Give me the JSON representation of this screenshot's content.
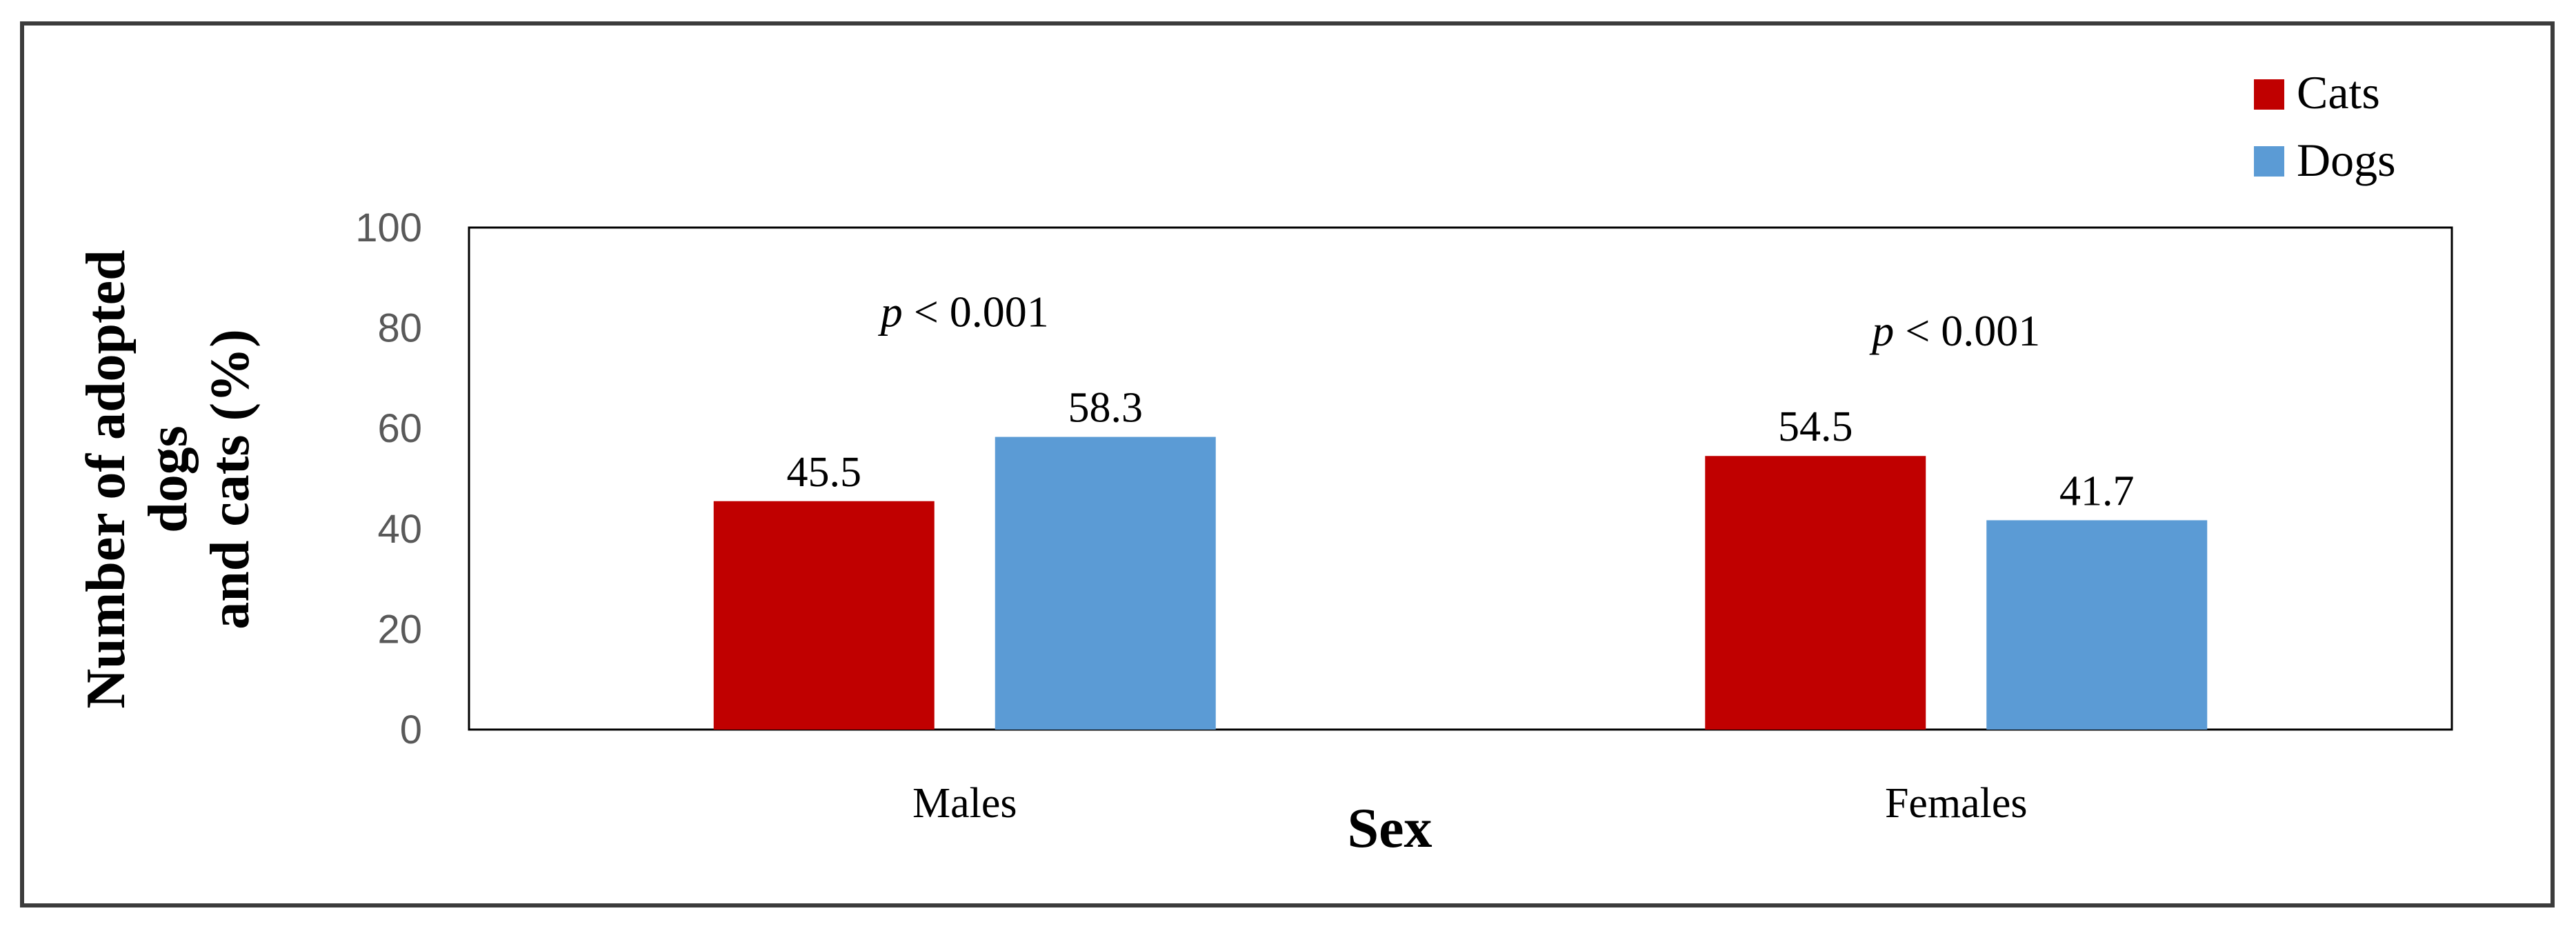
{
  "chart_data": {
    "type": "bar",
    "categories": [
      "Males",
      "Females"
    ],
    "series": [
      {
        "name": "Cats",
        "values": [
          45.5,
          54.5
        ],
        "color": "#c00000"
      },
      {
        "name": "Dogs",
        "values": [
          58.3,
          41.7
        ],
        "color": "#5b9bd5"
      }
    ],
    "xlabel": "Sex",
    "ylabel_lines": [
      "Number of adopted",
      "dogs",
      "and cats (%)"
    ],
    "ylim": [
      0,
      100
    ],
    "yticks": [
      "0",
      "20",
      "40",
      "60",
      "80",
      "100"
    ],
    "annotations": [
      {
        "category": "Males",
        "p_symbol": "p",
        "text": "< 0.001"
      },
      {
        "category": "Females",
        "p_symbol": "p",
        "text": "< 0.001"
      }
    ],
    "legend_position": "top-right",
    "grid": false
  }
}
